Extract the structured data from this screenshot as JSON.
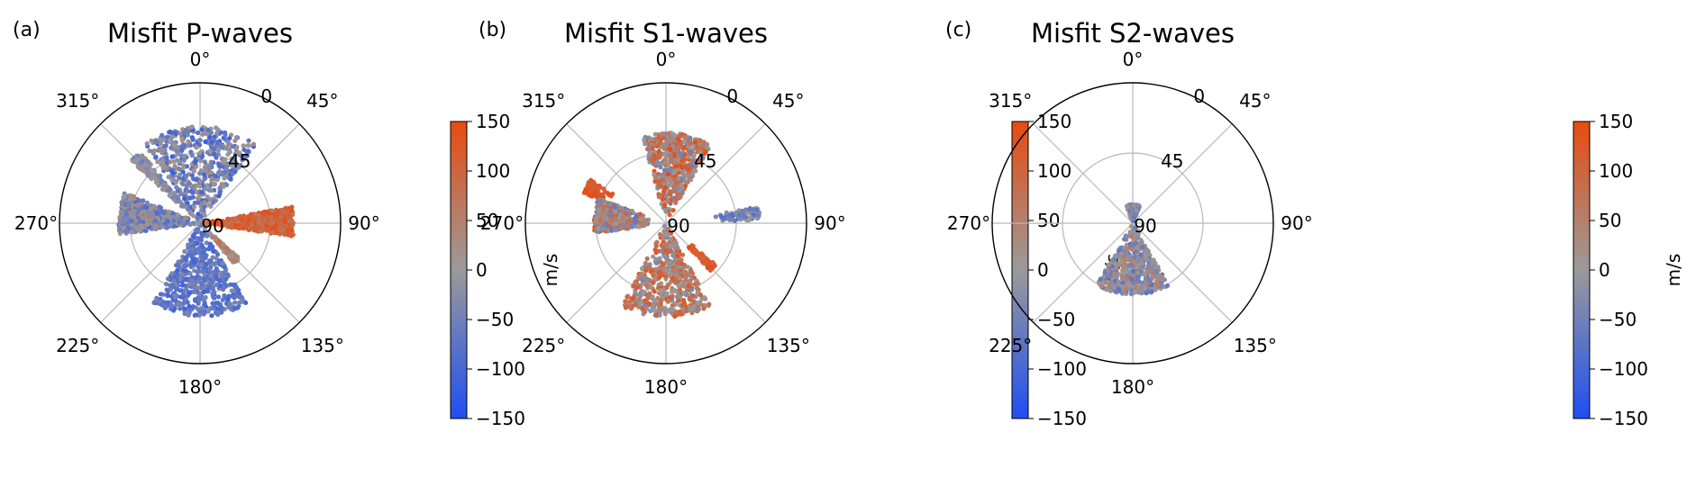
{
  "figure": {
    "colormap": {
      "low": "#1f4ef2",
      "mid": "#9a9a9a",
      "high": "#e84b10"
    },
    "colorbar_label": "m/s"
  },
  "chart_data": [
    {
      "type": "scatter",
      "projection": "polar",
      "panel_label": "(a)",
      "title": "Misfit P-waves",
      "azimuth_ticks": [
        "0°",
        "45°",
        "90°",
        "135°",
        "180°",
        "225°",
        "270°",
        "315°"
      ],
      "radial_ticks": [
        "0",
        "45",
        "90"
      ],
      "radial_range": [
        0,
        90
      ],
      "grid": true,
      "colorbar": {
        "label": "m/s",
        "range": [
          -150,
          150
        ],
        "ticks": [
          "150",
          "100",
          "50",
          "0",
          "−50",
          "−100",
          "−150"
        ]
      },
      "clusters": [
        {
          "azimuth_range": [
            325,
            35
          ],
          "inclination_range": [
            0,
            62
          ],
          "misfit_range": [
            -120,
            30
          ]
        },
        {
          "azimuth_range": [
            312,
            320
          ],
          "inclination_range": [
            4,
            60
          ],
          "misfit_range": [
            -60,
            30
          ]
        },
        {
          "azimuth_range": [
            80,
            98
          ],
          "inclination_range": [
            0,
            60
          ],
          "misfit_range": [
            60,
            150
          ]
        },
        {
          "azimuth_range": [
            132,
            140
          ],
          "inclination_range": [
            2,
            34
          ],
          "misfit_range": [
            -20,
            90
          ]
        },
        {
          "azimuth_range": [
            150,
            210
          ],
          "inclination_range": [
            0,
            60
          ],
          "misfit_range": [
            -110,
            -30
          ]
        },
        {
          "azimuth_range": [
            262,
            292
          ],
          "inclination_range": [
            0,
            52
          ],
          "misfit_range": [
            -100,
            40
          ]
        }
      ]
    },
    {
      "type": "scatter",
      "projection": "polar",
      "panel_label": "(b)",
      "title": "Misfit S1-waves",
      "azimuth_ticks": [
        "0°",
        "45°",
        "90°",
        "135°",
        "180°",
        "225°",
        "270°",
        "315°"
      ],
      "radial_ticks": [
        "0",
        "45",
        "90"
      ],
      "radial_range": [
        0,
        90
      ],
      "grid": true,
      "colorbar": {
        "label": "m/s",
        "range": [
          -150,
          150
        ],
        "ticks": [
          "150",
          "100",
          "50",
          "0",
          "−50",
          "−100",
          "−150"
        ]
      },
      "clusters": [
        {
          "azimuth_range": [
            345,
            30
          ],
          "inclination_range": [
            2,
            58
          ],
          "misfit_range": [
            -60,
            150
          ]
        },
        {
          "azimuth_range": [
            290,
            300
          ],
          "inclination_range": [
            38,
            56
          ],
          "misfit_range": [
            100,
            150
          ]
        },
        {
          "azimuth_range": [
            80,
            88
          ],
          "inclination_range": [
            30,
            60
          ],
          "misfit_range": [
            -90,
            10
          ]
        },
        {
          "azimuth_range": [
            130,
            137
          ],
          "inclination_range": [
            16,
            42
          ],
          "misfit_range": [
            100,
            150
          ]
        },
        {
          "azimuth_range": [
            152,
            208
          ],
          "inclination_range": [
            0,
            60
          ],
          "misfit_range": [
            -40,
            130
          ]
        },
        {
          "azimuth_range": [
            262,
            290
          ],
          "inclination_range": [
            10,
            46
          ],
          "misfit_range": [
            -80,
            120
          ]
        }
      ]
    },
    {
      "type": "scatter",
      "projection": "polar",
      "panel_label": "(c)",
      "title": "Misfit S2-waves",
      "azimuth_ticks": [
        "0°",
        "45°",
        "90°",
        "135°",
        "180°",
        "225°",
        "270°",
        "315°"
      ],
      "radial_ticks": [
        "0",
        "45",
        "90"
      ],
      "radial_range": [
        0,
        90
      ],
      "grid": true,
      "colorbar": {
        "label": "m/s",
        "range": [
          -150,
          150
        ],
        "ticks": [
          "150",
          "100",
          "50",
          "0",
          "−50",
          "−100",
          "−150"
        ]
      },
      "clusters": [
        {
          "azimuth_range": [
            340,
            22
          ],
          "inclination_range": [
            0,
            12
          ],
          "misfit_range": [
            -90,
            40
          ]
        },
        {
          "azimuth_range": [
            150,
            210
          ],
          "inclination_range": [
            0,
            46
          ],
          "misfit_range": [
            -80,
            60
          ]
        }
      ]
    }
  ]
}
